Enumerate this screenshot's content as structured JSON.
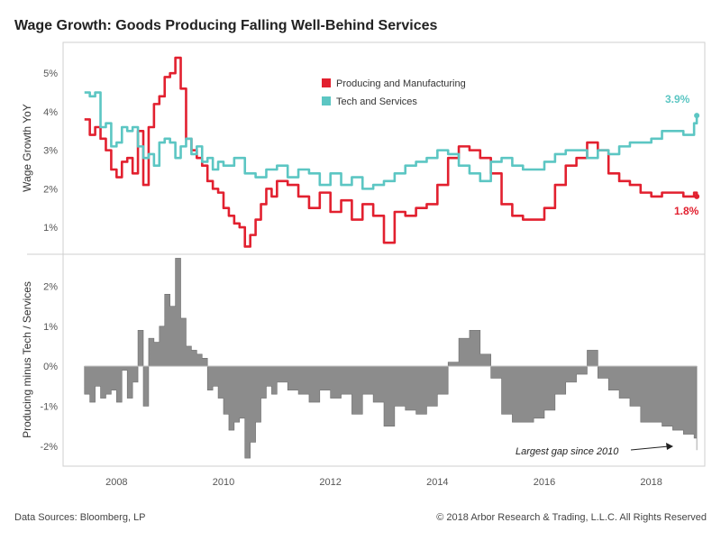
{
  "header": {
    "title": "Wage Growth: Goods Producing Falling Well-Behind Services"
  },
  "footer": {
    "source": "Data Sources: Bloomberg, LP",
    "copyright": "© 2018 Arbor Research & Trading, L.L.C. All Rights Reserved"
  },
  "colors": {
    "producing": "#e2202f",
    "services": "#5cc6c3",
    "gap": "#8c8c8c"
  },
  "chart_data": [
    {
      "type": "line",
      "ylabel": "Wage Growth YoY",
      "ylim": [
        0.3,
        5.8
      ],
      "yticks": [
        1,
        2,
        3,
        4,
        5
      ],
      "ytick_labels": [
        "1%",
        "2%",
        "3%",
        "4%",
        "5%"
      ],
      "xlim": [
        2007.0,
        2019.0
      ],
      "xticks": [
        2008,
        2010,
        2012,
        2014,
        2016,
        2018
      ],
      "xtick_labels": [
        "2008",
        "2010",
        "2012",
        "2014",
        "2016",
        "2018"
      ],
      "grid": false,
      "legend": "top-center",
      "annotations": {
        "services_end": "3.9%",
        "producing_end": "1.8%"
      },
      "series": [
        {
          "name": "Producing and Manufacturing",
          "x": [
            2007.4,
            2007.5,
            2007.6,
            2007.7,
            2007.8,
            2007.9,
            2008.0,
            2008.1,
            2008.2,
            2008.3,
            2008.4,
            2008.5,
            2008.6,
            2008.7,
            2008.8,
            2008.9,
            2009.0,
            2009.1,
            2009.2,
            2009.3,
            2009.4,
            2009.5,
            2009.6,
            2009.7,
            2009.8,
            2009.9,
            2010.0,
            2010.1,
            2010.2,
            2010.3,
            2010.4,
            2010.5,
            2010.6,
            2010.7,
            2010.8,
            2010.9,
            2011.0,
            2011.2,
            2011.4,
            2011.6,
            2011.8,
            2012.0,
            2012.2,
            2012.4,
            2012.6,
            2012.8,
            2013.0,
            2013.2,
            2013.4,
            2013.6,
            2013.8,
            2014.0,
            2014.2,
            2014.4,
            2014.6,
            2014.8,
            2015.0,
            2015.2,
            2015.4,
            2015.6,
            2015.8,
            2016.0,
            2016.2,
            2016.4,
            2016.6,
            2016.8,
            2017.0,
            2017.2,
            2017.4,
            2017.6,
            2017.8,
            2018.0,
            2018.2,
            2018.4,
            2018.6,
            2018.8,
            2018.85
          ],
          "values": [
            3.8,
            3.4,
            3.6,
            3.3,
            3.0,
            2.5,
            2.3,
            2.7,
            2.8,
            2.4,
            3.5,
            2.1,
            3.6,
            4.2,
            4.4,
            4.9,
            5.0,
            5.4,
            4.6,
            3.3,
            3.0,
            2.8,
            2.6,
            2.2,
            2.0,
            1.9,
            1.5,
            1.3,
            1.1,
            1.0,
            0.5,
            0.8,
            1.2,
            1.6,
            2.0,
            1.8,
            2.2,
            2.1,
            1.8,
            1.5,
            1.9,
            1.4,
            1.7,
            1.2,
            1.6,
            1.3,
            0.6,
            1.4,
            1.3,
            1.5,
            1.6,
            2.1,
            2.8,
            3.1,
            3.0,
            2.8,
            2.4,
            1.6,
            1.3,
            1.2,
            1.2,
            1.5,
            2.1,
            2.6,
            2.8,
            3.2,
            3.0,
            2.4,
            2.2,
            2.1,
            1.9,
            1.8,
            1.9,
            1.9,
            1.8,
            1.9,
            1.8
          ]
        },
        {
          "name": "Tech and Services",
          "x": [
            2007.4,
            2007.5,
            2007.6,
            2007.7,
            2007.8,
            2007.9,
            2008.0,
            2008.1,
            2008.2,
            2008.3,
            2008.4,
            2008.5,
            2008.6,
            2008.7,
            2008.8,
            2008.9,
            2009.0,
            2009.1,
            2009.2,
            2009.3,
            2009.4,
            2009.5,
            2009.6,
            2009.7,
            2009.8,
            2009.9,
            2010.0,
            2010.2,
            2010.4,
            2010.6,
            2010.8,
            2011.0,
            2011.2,
            2011.4,
            2011.6,
            2011.8,
            2012.0,
            2012.2,
            2012.4,
            2012.6,
            2012.8,
            2013.0,
            2013.2,
            2013.4,
            2013.6,
            2013.8,
            2014.0,
            2014.2,
            2014.4,
            2014.6,
            2014.8,
            2015.0,
            2015.2,
            2015.4,
            2015.6,
            2015.8,
            2016.0,
            2016.2,
            2016.4,
            2016.6,
            2016.8,
            2017.0,
            2017.2,
            2017.4,
            2017.6,
            2017.8,
            2018.0,
            2018.2,
            2018.4,
            2018.6,
            2018.8,
            2018.85
          ],
          "values": [
            4.5,
            4.4,
            4.5,
            3.6,
            3.7,
            3.1,
            3.2,
            3.6,
            3.5,
            3.6,
            3.1,
            2.8,
            2.9,
            2.6,
            3.2,
            3.3,
            3.2,
            2.8,
            3.1,
            3.3,
            2.9,
            3.1,
            2.7,
            2.8,
            2.5,
            2.7,
            2.6,
            2.8,
            2.4,
            2.3,
            2.5,
            2.6,
            2.3,
            2.5,
            2.4,
            2.1,
            2.4,
            2.1,
            2.3,
            2.0,
            2.1,
            2.2,
            2.4,
            2.6,
            2.7,
            2.8,
            3.0,
            2.9,
            2.6,
            2.4,
            2.2,
            2.7,
            2.8,
            2.6,
            2.5,
            2.5,
            2.7,
            2.9,
            3.0,
            3.0,
            2.8,
            3.0,
            2.9,
            3.1,
            3.2,
            3.2,
            3.3,
            3.5,
            3.5,
            3.4,
            3.7,
            3.9
          ]
        }
      ]
    },
    {
      "type": "area",
      "ylabel": "Producing minus Tech / Services",
      "ylim": [
        -2.5,
        2.8
      ],
      "yticks": [
        -2,
        -1,
        0,
        1,
        2
      ],
      "ytick_labels": [
        "-2%",
        "-1%",
        "0%",
        "1%",
        "2%"
      ],
      "xlim": [
        2007.0,
        2019.0
      ],
      "xticks": [
        2008,
        2010,
        2012,
        2014,
        2016,
        2018
      ],
      "xtick_labels": [
        "2008",
        "2010",
        "2012",
        "2014",
        "2016",
        "2018"
      ],
      "grid": false,
      "annotation": "Largest gap since 2010",
      "series": [
        {
          "name": "",
          "x": [
            2007.4,
            2007.5,
            2007.6,
            2007.7,
            2007.8,
            2007.9,
            2008.0,
            2008.1,
            2008.2,
            2008.3,
            2008.4,
            2008.5,
            2008.6,
            2008.7,
            2008.8,
            2008.9,
            2009.0,
            2009.1,
            2009.2,
            2009.3,
            2009.4,
            2009.5,
            2009.6,
            2009.7,
            2009.8,
            2009.9,
            2010.0,
            2010.1,
            2010.2,
            2010.3,
            2010.4,
            2010.5,
            2010.6,
            2010.7,
            2010.8,
            2010.9,
            2011.0,
            2011.2,
            2011.4,
            2011.6,
            2011.8,
            2012.0,
            2012.2,
            2012.4,
            2012.6,
            2012.8,
            2013.0,
            2013.2,
            2013.4,
            2013.6,
            2013.8,
            2014.0,
            2014.2,
            2014.4,
            2014.6,
            2014.8,
            2015.0,
            2015.2,
            2015.4,
            2015.6,
            2015.8,
            2016.0,
            2016.2,
            2016.4,
            2016.6,
            2016.8,
            2017.0,
            2017.2,
            2017.4,
            2017.6,
            2017.8,
            2018.0,
            2018.2,
            2018.4,
            2018.6,
            2018.8,
            2018.85
          ],
          "values": [
            -0.7,
            -0.9,
            -0.5,
            -0.8,
            -0.7,
            -0.6,
            -0.9,
            -0.1,
            -0.8,
            -0.4,
            0.9,
            -1.0,
            0.7,
            0.6,
            1.0,
            1.8,
            1.5,
            2.7,
            1.2,
            0.5,
            0.4,
            0.3,
            0.2,
            -0.6,
            -0.5,
            -0.8,
            -1.2,
            -1.6,
            -1.4,
            -1.3,
            -2.3,
            -1.9,
            -1.4,
            -0.8,
            -0.5,
            -0.7,
            -0.4,
            -0.6,
            -0.7,
            -0.9,
            -0.6,
            -0.8,
            -0.7,
            -1.2,
            -0.7,
            -0.9,
            -1.5,
            -1.0,
            -1.1,
            -1.2,
            -1.0,
            -0.7,
            0.1,
            0.7,
            0.9,
            0.3,
            -0.3,
            -1.2,
            -1.4,
            -1.4,
            -1.3,
            -1.1,
            -0.7,
            -0.4,
            -0.2,
            0.4,
            -0.3,
            -0.6,
            -0.8,
            -1.0,
            -1.4,
            -1.4,
            -1.5,
            -1.6,
            -1.7,
            -1.8,
            -2.1
          ]
        }
      ]
    }
  ]
}
